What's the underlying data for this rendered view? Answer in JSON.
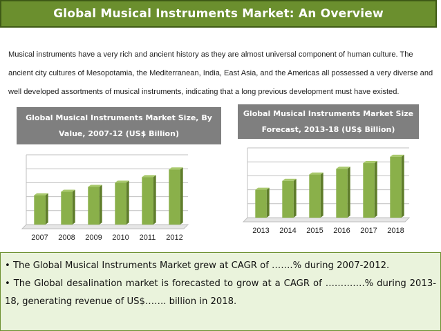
{
  "title": "Global Musical Instruments Market: An Overview",
  "intro": "Musical instruments have a very rich and ancient history as they are almost universal component of human culture. The ancient city cultures of Mesopotamia, the Mediterranean, India, East Asia, and the Americas all possessed a very diverse and well developed assortments of musical instruments, indicating that a long previous development must have existed.",
  "colors": {
    "title_bg": "#6b8f2e",
    "bar": "#8ab04a",
    "header_bg": "#7f7f7f",
    "summary_bg": "#eaf3dc"
  },
  "chart_data": [
    {
      "type": "bar",
      "title": "Global Musical Instruments Market Size, By Value, 2007-12 (US$ Billion)",
      "categories": [
        "2007",
        "2008",
        "2009",
        "2010",
        "2011",
        "2012"
      ],
      "values": [
        2.1,
        2.35,
        2.7,
        3.0,
        3.4,
        3.95
      ],
      "ylim": [
        0,
        5
      ],
      "grid": true,
      "axis_labels_visible": false
    },
    {
      "type": "bar",
      "title": "Global Musical Instruments Market Size Forecast, 2013-18 (US$ Billion)",
      "categories": [
        "2013",
        "2014",
        "2015",
        "2016",
        "2017",
        "2018"
      ],
      "values": [
        2.2,
        2.9,
        3.4,
        3.85,
        4.3,
        4.8
      ],
      "ylim": [
        0,
        5.5
      ],
      "grid": true,
      "axis_labels_visible": false
    }
  ],
  "summary": {
    "bullets": [
      "• The Global Musical Instruments Market grew at CAGR of …….% during 2007-2012.",
      "• The Global desalination market is forecasted to grow at a CAGR of ………….% during 2013-18, generating revenue of US$……. billion in 2018."
    ]
  }
}
